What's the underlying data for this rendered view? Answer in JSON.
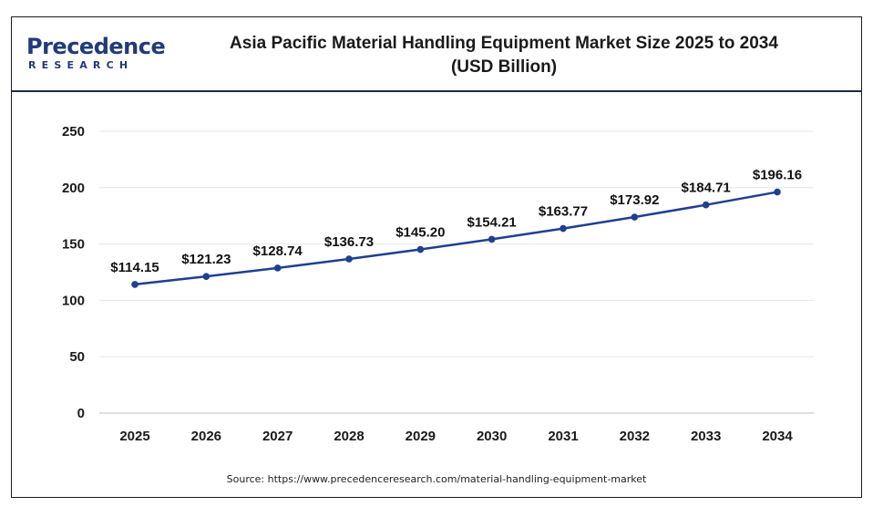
{
  "brand": {
    "name": "Precedence",
    "sub": "RESEARCH",
    "color": "#223a7a"
  },
  "source": "Source: https://www.precedenceresearch.com/material-handling-equipment-market",
  "chart_data": {
    "type": "line",
    "title_line1": "Asia Pacific Material Handling Equipment Market Size 2025 to 2034",
    "title_line2": "(USD Billion)",
    "xlabel": "",
    "ylabel": "",
    "categories": [
      "2025",
      "2026",
      "2027",
      "2028",
      "2029",
      "2030",
      "2031",
      "2032",
      "2033",
      "2034"
    ],
    "series": [
      {
        "values": [
          114.15,
          121.23,
          128.74,
          136.73,
          145.2,
          154.21,
          163.77,
          173.92,
          184.71,
          196.16
        ],
        "labels": [
          "$114.15",
          "$121.23",
          "$128.74",
          "$136.73",
          "$145.20",
          "$154.21",
          "$163.77",
          "$173.92",
          "$184.71",
          "$196.16"
        ],
        "color": "#1f3f8f"
      }
    ],
    "ylim": [
      0,
      250
    ],
    "yticks": [
      0,
      50,
      100,
      150,
      200,
      250
    ],
    "grid": true,
    "legend": "none"
  }
}
